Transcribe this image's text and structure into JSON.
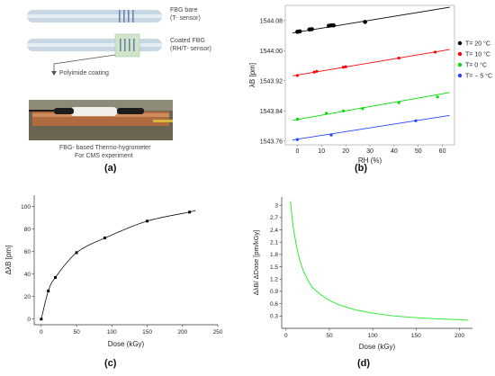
{
  "panel_a": {
    "label": "(a)",
    "fiber1_label_line1": "FBG bare",
    "fiber1_label_line2": "(T- sensor)",
    "fiber2_label_line1": "Coated FBG",
    "fiber2_label_line2": "(RH/T- sensor)",
    "coating_label": "Polyimide coating",
    "caption_line1": "FBG- based Thermo-hygrometer",
    "caption_line2": "For CMS experiment"
  },
  "panel_b": {
    "label": "(b)"
  },
  "panel_c": {
    "label": "(c)"
  },
  "panel_d": {
    "label": "(d)"
  },
  "chart_data": [
    {
      "type": "scatter",
      "xlabel": "RH (%)",
      "ylabel": "λB [pm]",
      "xlim": [
        -5,
        65
      ],
      "ylim": [
        1543.75,
        1544.12
      ],
      "xticks": [
        "0",
        "10",
        "20",
        "30",
        "40",
        "50",
        "60"
      ],
      "yticks": [
        "1543.76",
        "1543.84",
        "1543.92",
        "1544.00",
        "1544.08"
      ],
      "legend_position": "right",
      "series": [
        {
          "name": "T= 20 °C",
          "color": "#000000",
          "x": [
            0,
            1,
            5,
            6,
            13,
            14,
            15,
            28
          ],
          "y": [
            1544.05,
            1544.051,
            1544.056,
            1544.057,
            1544.066,
            1544.067,
            1544.067,
            1544.076
          ],
          "fit": [
            [
              -2,
              1544.047
            ],
            [
              63,
              1544.115
            ]
          ]
        },
        {
          "name": "T= 10 °C",
          "color": "#ff0000",
          "x": [
            0,
            7,
            8,
            19,
            20,
            42,
            57
          ],
          "y": [
            1543.934,
            1543.943,
            1543.945,
            1543.956,
            1543.957,
            1543.98,
            1543.996
          ],
          "fit": [
            [
              -2,
              1543.933
            ],
            [
              63,
              1544.003
            ]
          ]
        },
        {
          "name": "T=   0 °C",
          "color": "#00dd00",
          "x": [
            0,
            12,
            19,
            27,
            42,
            58
          ],
          "y": [
            1543.818,
            1543.834,
            1543.84,
            1543.846,
            1543.862,
            1543.877
          ],
          "fit": [
            [
              -2,
              1543.815
            ],
            [
              63,
              1543.889
            ]
          ]
        },
        {
          "name": "T= − 5 °C",
          "color": "#2244ff",
          "x": [
            0,
            14,
            49
          ],
          "y": [
            1543.764,
            1543.776,
            1543.814
          ],
          "fit": [
            [
              -2,
              1543.763
            ],
            [
              63,
              1543.828
            ]
          ]
        }
      ]
    },
    {
      "type": "scatter",
      "xlabel": "Dose (kGy)",
      "ylabel": "ΔλB [pm]",
      "xlim": [
        -10,
        250
      ],
      "ylim": [
        -5,
        110
      ],
      "xticks": [
        "0",
        "50",
        "100",
        "150",
        "200",
        "250"
      ],
      "yticks": [
        "0",
        "20",
        "40",
        "60",
        "80",
        "100"
      ],
      "series": [
        {
          "name": "",
          "color": "#000000",
          "x": [
            0,
            10,
            20,
            50,
            90,
            150,
            210
          ],
          "y": [
            0,
            25,
            37,
            59,
            72,
            87,
            95
          ]
        }
      ]
    },
    {
      "type": "line",
      "xlabel": "Dose (kGy)",
      "ylabel": "ΔλB/ ΔDose [pm/kGy]",
      "xlim": [
        -5,
        215
      ],
      "ylim": [
        0,
        3.2
      ],
      "xticks": [
        "0",
        "50",
        "100",
        "150",
        "200"
      ],
      "yticks": [
        "0.3",
        "0.6",
        "0.9",
        "1.2",
        "1.5",
        "1.8",
        "2.1",
        "2.4",
        "2.7",
        "3"
      ],
      "series": [
        {
          "name": "",
          "color": "#33ee33",
          "x": [
            5,
            8,
            12,
            16,
            20,
            25,
            30,
            40,
            50,
            60,
            80,
            100,
            125,
            150,
            175,
            200,
            210
          ],
          "y": [
            3.1,
            2.5,
            2.0,
            1.65,
            1.4,
            1.18,
            1.0,
            0.82,
            0.68,
            0.58,
            0.45,
            0.37,
            0.3,
            0.26,
            0.23,
            0.21,
            0.2
          ]
        }
      ]
    }
  ]
}
